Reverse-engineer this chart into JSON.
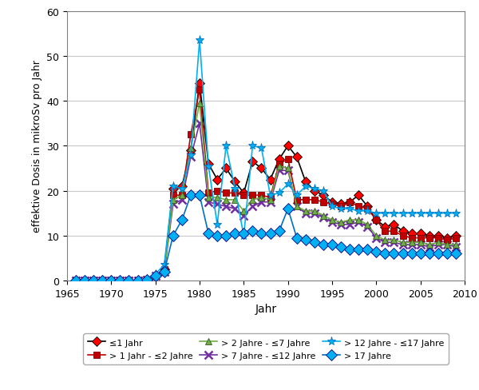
{
  "title": "",
  "xlabel": "Jahr",
  "ylabel": "effektive Dosis in mikroSv pro Jahr",
  "xlim": [
    1965,
    2010
  ],
  "ylim": [
    0,
    60
  ],
  "yticks": [
    0,
    10,
    20,
    30,
    40,
    50,
    60
  ],
  "xticks": [
    1965,
    1970,
    1975,
    1980,
    1985,
    1990,
    1995,
    2000,
    2005,
    2010
  ],
  "series": {
    "le1": {
      "label": "≤1 Jahr",
      "line_color": "#000000",
      "marker": "D",
      "marker_facecolor": "#FF0000",
      "marker_edgecolor": "#000000",
      "markersize": 6,
      "linewidth": 1.2,
      "years": [
        1966,
        1967,
        1968,
        1969,
        1970,
        1971,
        1972,
        1973,
        1974,
        1975,
        1976,
        1977,
        1978,
        1979,
        1980,
        1981,
        1982,
        1983,
        1984,
        1985,
        1986,
        1987,
        1988,
        1989,
        1990,
        1991,
        1992,
        1993,
        1994,
        1995,
        1996,
        1997,
        1998,
        1999,
        2000,
        2001,
        2002,
        2003,
        2004,
        2005,
        2006,
        2007,
        2008,
        2009
      ],
      "values": [
        0,
        0,
        0,
        0,
        0,
        0,
        0,
        0,
        0.2,
        1.0,
        2.5,
        20.5,
        21.0,
        29.0,
        44.0,
        26.0,
        22.5,
        25.0,
        22.0,
        19.5,
        26.5,
        25.0,
        22.5,
        27.0,
        30.0,
        27.5,
        22.0,
        20.0,
        19.0,
        17.5,
        17.0,
        17.5,
        19.0,
        16.5,
        13.5,
        12.0,
        12.5,
        11.0,
        10.5,
        10.5,
        10.0,
        10.0,
        9.5,
        10.0
      ]
    },
    "gt1le2": {
      "label": "> 1 Jahr - ≤2 Jahre",
      "line_color": "#C00000",
      "marker": "s",
      "marker_facecolor": "#C00000",
      "marker_edgecolor": "#800000",
      "markersize": 6,
      "linewidth": 1.2,
      "years": [
        1966,
        1967,
        1968,
        1969,
        1970,
        1971,
        1972,
        1973,
        1974,
        1975,
        1976,
        1977,
        1978,
        1979,
        1980,
        1981,
        1982,
        1983,
        1984,
        1985,
        1986,
        1987,
        1988,
        1989,
        1990,
        1991,
        1992,
        1993,
        1994,
        1995,
        1996,
        1997,
        1998,
        1999,
        2000,
        2001,
        2002,
        2003,
        2004,
        2005,
        2006,
        2007,
        2008,
        2009
      ],
      "values": [
        0,
        0,
        0,
        0,
        0,
        0,
        0,
        0,
        0.2,
        1.0,
        2.5,
        19.0,
        19.0,
        32.5,
        42.5,
        19.5,
        20.0,
        19.5,
        19.5,
        19.0,
        19.0,
        19.0,
        18.5,
        26.0,
        27.0,
        18.0,
        18.0,
        18.0,
        17.5,
        17.0,
        16.5,
        17.5,
        16.5,
        16.0,
        13.5,
        11.0,
        11.0,
        10.0,
        9.5,
        9.5,
        9.5,
        9.5,
        9.0,
        9.5
      ]
    },
    "gt2le7": {
      "label": "> 2 Jahre - ≤7 Jahre",
      "line_color": "#70AD47",
      "marker": "^",
      "marker_facecolor": "#70AD47",
      "marker_edgecolor": "#375623",
      "markersize": 6,
      "linewidth": 1.2,
      "years": [
        1966,
        1967,
        1968,
        1969,
        1970,
        1971,
        1972,
        1973,
        1974,
        1975,
        1976,
        1977,
        1978,
        1979,
        1980,
        1981,
        1982,
        1983,
        1984,
        1985,
        1986,
        1987,
        1988,
        1989,
        1990,
        1991,
        1992,
        1993,
        1994,
        1995,
        1996,
        1997,
        1998,
        1999,
        2000,
        2001,
        2002,
        2003,
        2004,
        2005,
        2006,
        2007,
        2008,
        2009
      ],
      "values": [
        0,
        0,
        0,
        0,
        0,
        0,
        0,
        0,
        0.2,
        1.0,
        2.0,
        18.0,
        19.0,
        29.5,
        39.5,
        18.5,
        18.5,
        18.0,
        18.0,
        15.5,
        18.0,
        18.5,
        18.0,
        25.5,
        25.0,
        16.5,
        15.5,
        15.5,
        14.5,
        13.5,
        13.0,
        13.5,
        13.5,
        12.5,
        10.0,
        9.0,
        9.0,
        8.5,
        8.5,
        8.5,
        8.0,
        8.5,
        8.0,
        8.0
      ]
    },
    "gt7le12": {
      "label": "> 7 Jahre - ≤12 Jahre",
      "line_color": "#7030A0",
      "marker": "x",
      "marker_facecolor": "#7030A0",
      "marker_edgecolor": "#7030A0",
      "markersize": 7,
      "linewidth": 1.2,
      "years": [
        1966,
        1967,
        1968,
        1969,
        1970,
        1971,
        1972,
        1973,
        1974,
        1975,
        1976,
        1977,
        1978,
        1979,
        1980,
        1981,
        1982,
        1983,
        1984,
        1985,
        1986,
        1987,
        1988,
        1989,
        1990,
        1991,
        1992,
        1993,
        1994,
        1995,
        1996,
        1997,
        1998,
        1999,
        2000,
        2001,
        2002,
        2003,
        2004,
        2005,
        2006,
        2007,
        2008,
        2009
      ],
      "values": [
        0,
        0,
        0,
        0,
        0,
        0,
        0,
        0,
        0.2,
        1.0,
        2.0,
        17.0,
        18.0,
        27.5,
        35.0,
        17.5,
        17.0,
        16.5,
        16.0,
        14.5,
        16.5,
        17.5,
        17.5,
        24.5,
        24.5,
        16.5,
        15.0,
        15.0,
        14.0,
        13.0,
        12.5,
        12.5,
        13.0,
        12.0,
        9.5,
        8.5,
        8.5,
        8.0,
        8.0,
        8.0,
        7.5,
        8.0,
        8.0,
        7.5
      ]
    },
    "gt12le17": {
      "label": "> 12 Jahre - ≤17 Jahre",
      "line_color": "#00B0F0",
      "marker": "*",
      "marker_facecolor": "#00B0F0",
      "marker_edgecolor": "#0070C0",
      "markersize": 8,
      "linewidth": 1.2,
      "years": [
        1966,
        1967,
        1968,
        1969,
        1970,
        1971,
        1972,
        1973,
        1974,
        1975,
        1976,
        1977,
        1978,
        1979,
        1980,
        1981,
        1982,
        1983,
        1984,
        1985,
        1986,
        1987,
        1988,
        1989,
        1990,
        1991,
        1992,
        1993,
        1994,
        1995,
        1996,
        1997,
        1998,
        1999,
        2000,
        2001,
        2002,
        2003,
        2004,
        2005,
        2006,
        2007,
        2008,
        2009
      ],
      "values": [
        0,
        0,
        0,
        0,
        0,
        0,
        0,
        0,
        0.2,
        1.5,
        3.5,
        21.0,
        20.5,
        28.0,
        53.5,
        25.5,
        12.5,
        30.0,
        20.5,
        10.0,
        30.0,
        29.5,
        19.0,
        19.5,
        21.5,
        19.0,
        21.0,
        20.5,
        20.0,
        16.5,
        16.0,
        16.0,
        15.5,
        15.5,
        15.0,
        15.0,
        15.0,
        15.0,
        15.0,
        15.0,
        15.0,
        15.0,
        15.0,
        15.0
      ]
    },
    "gt17": {
      "label": "> 17 Jahre",
      "line_color": "#0070C0",
      "marker": "D",
      "marker_facecolor": "#00B0F0",
      "marker_edgecolor": "#000080",
      "markersize": 7,
      "linewidth": 1.2,
      "years": [
        1966,
        1967,
        1968,
        1969,
        1970,
        1971,
        1972,
        1973,
        1974,
        1975,
        1976,
        1977,
        1978,
        1979,
        1980,
        1981,
        1982,
        1983,
        1984,
        1985,
        1986,
        1987,
        1988,
        1989,
        1990,
        1991,
        1992,
        1993,
        1994,
        1995,
        1996,
        1997,
        1998,
        1999,
        2000,
        2001,
        2002,
        2003,
        2004,
        2005,
        2006,
        2007,
        2008,
        2009
      ],
      "values": [
        0,
        0,
        0,
        0,
        0,
        0,
        0,
        0,
        0.2,
        1.0,
        2.0,
        10.0,
        13.5,
        19.0,
        19.0,
        10.5,
        10.0,
        10.0,
        10.5,
        10.5,
        11.0,
        10.5,
        10.5,
        11.0,
        16.0,
        9.5,
        9.0,
        8.5,
        8.0,
        8.0,
        7.5,
        7.0,
        7.0,
        7.0,
        6.5,
        6.0,
        6.0,
        6.0,
        6.0,
        6.0,
        6.0,
        6.0,
        6.0,
        6.0
      ]
    }
  },
  "figsize": [
    6.0,
    4.89
  ],
  "dpi": 100,
  "bg_color": "#FFFFFF",
  "plot_bg_color": "#FFFFFF",
  "grid_color": "#C8C8C8",
  "border_color": "#808080"
}
